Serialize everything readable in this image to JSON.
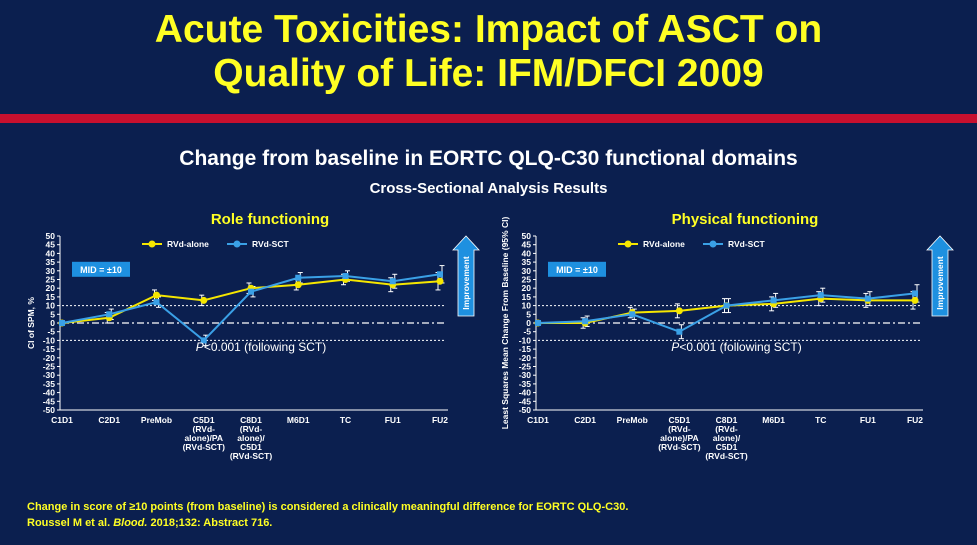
{
  "slide": {
    "title_line1": "Acute Toxicities: Impact of ASCT on",
    "title_line2": "Quality of Life: IFM/DFCI 2009",
    "subtitle": "Change from baseline in EORTC QLQ-C30 functional domains",
    "subsubtitle": "Cross-Sectional Analysis Results",
    "footer": "Change in score of ≥10 points (from baseline) is considered a clinically meaningful difference for EORTC QLQ-C30.",
    "citation_pre": "Roussel M et al. ",
    "citation_journal": "Blood.",
    "citation_post": " 2018;132: Abstract 716."
  },
  "colors": {
    "background": "#0b1f4f",
    "title": "#ffff24",
    "rule": "#c8102e",
    "rvd_alone": "#f5e600",
    "rvd_sct": "#3aa0e6",
    "arrow": "#1e90e0"
  },
  "chart_data": [
    {
      "type": "line",
      "title": "Role functioning",
      "ylabel": "CI of SPM, %",
      "ylim": [
        -50,
        50
      ],
      "yticks": [
        "50",
        "45",
        "40",
        "35",
        "30",
        "25",
        "20",
        "15",
        "10",
        "5",
        "0",
        "-5",
        "-10",
        "-15",
        "-20",
        "-25",
        "-30",
        "-35",
        "-40",
        "-45",
        "-50"
      ],
      "categories": [
        [
          "C1D1"
        ],
        [
          "C2D1"
        ],
        [
          "PreMob"
        ],
        [
          "C5D1",
          "(RVd-",
          "alone)/PA",
          "(RVd-SCT)"
        ],
        [
          "C8D1",
          "(RVd-",
          "alone)/",
          "C5D1",
          "(RVd-SCT)"
        ],
        [
          "M6D1"
        ],
        [
          "TC"
        ],
        [
          "FU1"
        ],
        [
          "FU2"
        ]
      ],
      "series": [
        {
          "name": "RVd-alone",
          "color": "#f5e600",
          "values": [
            0,
            3,
            16,
            13,
            20,
            22,
            25,
            22,
            24
          ]
        },
        {
          "name": "RVd-SCT",
          "color": "#3aa0e6",
          "values": [
            0,
            5,
            12,
            -10,
            18,
            26,
            27,
            24,
            28
          ]
        }
      ],
      "mid_label": "MID = ±10",
      "reference_lines": [
        10,
        -10
      ],
      "annotation_p": "P",
      "annotation_rest": "<0.001 (following SCT)",
      "arrow_label": "Improvement"
    },
    {
      "type": "line",
      "title": "Physical functioning",
      "ylabel": "Least Squares Mean Change From Baseline (95% CI)",
      "ylim": [
        -50,
        50
      ],
      "yticks": [
        "50",
        "45",
        "40",
        "35",
        "30",
        "25",
        "20",
        "15",
        "10",
        "5",
        "0",
        "-5",
        "-10",
        "-15",
        "-20",
        "-25",
        "-30",
        "-35",
        "-40",
        "-45",
        "-50"
      ],
      "categories": [
        [
          "C1D1"
        ],
        [
          "C2D1"
        ],
        [
          "PreMob"
        ],
        [
          "C5D1",
          "(RVd-",
          "alone)/PA",
          "(RVd-SCT)"
        ],
        [
          "C8D1",
          "(RVd-",
          "alone)/",
          "C5D1",
          "(RVd-SCT)"
        ],
        [
          "M6D1"
        ],
        [
          "TC"
        ],
        [
          "FU1"
        ],
        [
          "FU2"
        ]
      ],
      "series": [
        {
          "name": "RVd-alone",
          "color": "#f5e600",
          "values": [
            0,
            0,
            6,
            7,
            10,
            11,
            14,
            13,
            13
          ]
        },
        {
          "name": "RVd-SCT",
          "color": "#3aa0e6",
          "values": [
            0,
            1,
            5,
            -5,
            10,
            13,
            16,
            14,
            17
          ]
        }
      ],
      "mid_label": "MID = ±10",
      "reference_lines": [
        10,
        -10
      ],
      "annotation_p": "P",
      "annotation_rest": "<0.001 (following SCT)",
      "arrow_label": "Improvement"
    }
  ]
}
